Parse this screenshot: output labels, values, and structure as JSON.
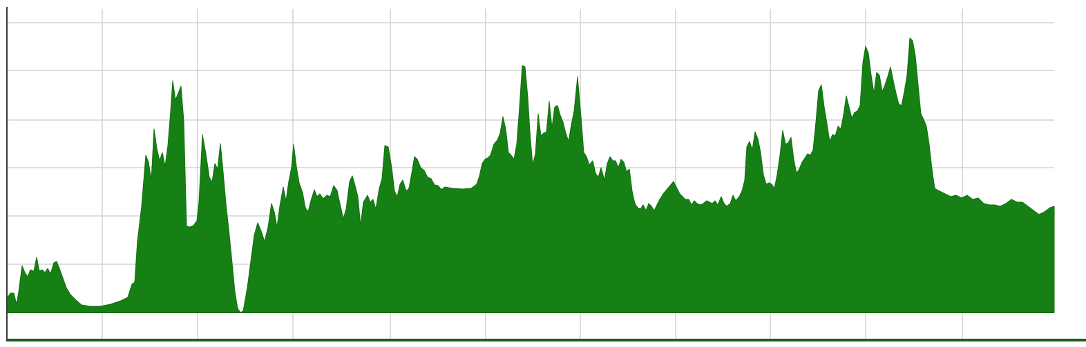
{
  "colors": {
    "area_fill": "#168014",
    "area_stroke": "#127012",
    "grid": "#d4d4d4",
    "axis": "#3a3a3a",
    "bottom_bar": "#1d5c1d"
  },
  "chart_data": {
    "type": "area",
    "grid": true,
    "title": "",
    "xlabel": "",
    "ylabel": "",
    "xlim": [
      0,
      1516
    ],
    "ylim": [
      0,
      420
    ],
    "x_gridlines": [
      138,
      276,
      414,
      555,
      693,
      830,
      968,
      1105,
      1243,
      1383
    ],
    "y_gridlines": [
      70,
      140,
      210,
      279,
      351,
      420
    ],
    "series": [
      {
        "values": [
          [
            0,
            20
          ],
          [
            5,
            28
          ],
          [
            10,
            28
          ],
          [
            14,
            12
          ],
          [
            17,
            30
          ],
          [
            22,
            68
          ],
          [
            26,
            58
          ],
          [
            30,
            52
          ],
          [
            34,
            62
          ],
          [
            39,
            60
          ],
          [
            43,
            80
          ],
          [
            47,
            60
          ],
          [
            51,
            62
          ],
          [
            55,
            58
          ],
          [
            59,
            64
          ],
          [
            63,
            56
          ],
          [
            68,
            72
          ],
          [
            72,
            74
          ],
          [
            76,
            64
          ],
          [
            81,
            50
          ],
          [
            86,
            36
          ],
          [
            92,
            26
          ],
          [
            100,
            18
          ],
          [
            108,
            11
          ],
          [
            120,
            9
          ],
          [
            135,
            9
          ],
          [
            150,
            12
          ],
          [
            165,
            17
          ],
          [
            175,
            22
          ],
          [
            181,
            41
          ],
          [
            185,
            44
          ],
          [
            189,
            104
          ],
          [
            195,
            154
          ],
          [
            201,
            228
          ],
          [
            205,
            218
          ],
          [
            209,
            192
          ],
          [
            213,
            266
          ],
          [
            217,
            238
          ],
          [
            221,
            220
          ],
          [
            225,
            232
          ],
          [
            229,
            212
          ],
          [
            233,
            242
          ],
          [
            237,
            292
          ],
          [
            240,
            336
          ],
          [
            244,
            308
          ],
          [
            248,
            318
          ],
          [
            252,
            328
          ],
          [
            256,
            278
          ],
          [
            260,
            125
          ],
          [
            265,
            124
          ],
          [
            270,
            126
          ],
          [
            275,
            133
          ],
          [
            278,
            160
          ],
          [
            283,
            258
          ],
          [
            288,
            230
          ],
          [
            293,
            196
          ],
          [
            297,
            189
          ],
          [
            301,
            216
          ],
          [
            305,
            208
          ],
          [
            309,
            245
          ],
          [
            312,
            215
          ],
          [
            317,
            158
          ],
          [
            321,
            122
          ],
          [
            326,
            72
          ],
          [
            330,
            30
          ],
          [
            334,
            6
          ],
          [
            338,
            0
          ],
          [
            342,
            2
          ],
          [
            348,
            36
          ],
          [
            353,
            74
          ],
          [
            358,
            112
          ],
          [
            363,
            130
          ],
          [
            368,
            118
          ],
          [
            373,
            103
          ],
          [
            378,
            124
          ],
          [
            383,
            158
          ],
          [
            387,
            146
          ],
          [
            391,
            124
          ],
          [
            395,
            154
          ],
          [
            400,
            182
          ],
          [
            404,
            162
          ],
          [
            408,
            190
          ],
          [
            412,
            210
          ],
          [
            415,
            244
          ],
          [
            419,
            212
          ],
          [
            423,
            188
          ],
          [
            428,
            174
          ],
          [
            432,
            152
          ],
          [
            436,
            146
          ],
          [
            440,
            162
          ],
          [
            445,
            178
          ],
          [
            449,
            168
          ],
          [
            453,
            172
          ],
          [
            458,
            165
          ],
          [
            463,
            170
          ],
          [
            468,
            168
          ],
          [
            473,
            184
          ],
          [
            478,
            177
          ],
          [
            482,
            158
          ],
          [
            487,
            136
          ],
          [
            491,
            150
          ],
          [
            496,
            190
          ],
          [
            500,
            198
          ],
          [
            504,
            184
          ],
          [
            508,
            168
          ],
          [
            512,
            126
          ],
          [
            516,
            160
          ],
          [
            522,
            170
          ],
          [
            526,
            160
          ],
          [
            530,
            164
          ],
          [
            534,
            150
          ],
          [
            539,
            180
          ],
          [
            543,
            194
          ],
          [
            547,
            242
          ],
          [
            552,
            240
          ],
          [
            557,
            210
          ],
          [
            561,
            176
          ],
          [
            565,
            168
          ],
          [
            569,
            186
          ],
          [
            573,
            192
          ],
          [
            578,
            176
          ],
          [
            582,
            180
          ],
          [
            586,
            202
          ],
          [
            590,
            226
          ],
          [
            594,
            222
          ],
          [
            599,
            210
          ],
          [
            604,
            206
          ],
          [
            609,
            196
          ],
          [
            614,
            194
          ],
          [
            619,
            185
          ],
          [
            624,
            184
          ],
          [
            629,
            178
          ],
          [
            634,
            182
          ],
          [
            645,
            180
          ],
          [
            660,
            179
          ],
          [
            672,
            180
          ],
          [
            680,
            186
          ],
          [
            684,
            198
          ],
          [
            688,
            216
          ],
          [
            692,
            222
          ],
          [
            696,
            224
          ],
          [
            700,
            228
          ],
          [
            705,
            244
          ],
          [
            710,
            250
          ],
          [
            714,
            260
          ],
          [
            718,
            284
          ],
          [
            722,
            266
          ],
          [
            726,
            232
          ],
          [
            730,
            228
          ],
          [
            734,
            222
          ],
          [
            738,
            244
          ],
          [
            742,
            298
          ],
          [
            746,
            358
          ],
          [
            750,
            356
          ],
          [
            754,
            312
          ],
          [
            757,
            262
          ],
          [
            761,
            214
          ],
          [
            765,
            230
          ],
          [
            769,
            288
          ],
          [
            773,
            256
          ],
          [
            777,
            260
          ],
          [
            781,
            262
          ],
          [
            785,
            306
          ],
          [
            789,
            268
          ],
          [
            793,
            298
          ],
          [
            797,
            300
          ],
          [
            801,
            286
          ],
          [
            805,
            276
          ],
          [
            809,
            260
          ],
          [
            813,
            248
          ],
          [
            817,
            272
          ],
          [
            821,
            292
          ],
          [
            826,
            342
          ],
          [
            831,
            284
          ],
          [
            835,
            232
          ],
          [
            839,
            226
          ],
          [
            843,
            214
          ],
          [
            848,
            220
          ],
          [
            852,
            202
          ],
          [
            856,
            196
          ],
          [
            860,
            210
          ],
          [
            865,
            192
          ],
          [
            869,
            216
          ],
          [
            873,
            226
          ],
          [
            877,
            220
          ],
          [
            881,
            220
          ],
          [
            885,
            210
          ],
          [
            889,
            222
          ],
          [
            893,
            218
          ],
          [
            897,
            204
          ],
          [
            901,
            208
          ],
          [
            905,
            176
          ],
          [
            909,
            158
          ],
          [
            913,
            152
          ],
          [
            917,
            150
          ],
          [
            921,
            156
          ],
          [
            925,
            148
          ],
          [
            929,
            158
          ],
          [
            933,
            154
          ],
          [
            937,
            148
          ],
          [
            941,
            156
          ],
          [
            945,
            164
          ],
          [
            950,
            172
          ],
          [
            955,
            178
          ],
          [
            960,
            184
          ],
          [
            965,
            190
          ],
          [
            970,
            180
          ],
          [
            974,
            172
          ],
          [
            978,
            168
          ],
          [
            982,
            164
          ],
          [
            987,
            164
          ],
          [
            991,
            156
          ],
          [
            995,
            162
          ],
          [
            999,
            158
          ],
          [
            1004,
            156
          ],
          [
            1008,
            158
          ],
          [
            1013,
            162
          ],
          [
            1017,
            160
          ],
          [
            1021,
            158
          ],
          [
            1025,
            162
          ],
          [
            1029,
            156
          ],
          [
            1034,
            168
          ],
          [
            1038,
            158
          ],
          [
            1042,
            154
          ],
          [
            1047,
            158
          ],
          [
            1051,
            170
          ],
          [
            1055,
            162
          ],
          [
            1060,
            168
          ],
          [
            1064,
            176
          ],
          [
            1068,
            192
          ],
          [
            1071,
            240
          ],
          [
            1075,
            248
          ],
          [
            1079,
            236
          ],
          [
            1083,
            262
          ],
          [
            1087,
            252
          ],
          [
            1091,
            232
          ],
          [
            1095,
            200
          ],
          [
            1099,
            186
          ],
          [
            1103,
            188
          ],
          [
            1107,
            186
          ],
          [
            1111,
            180
          ],
          [
            1115,
            200
          ],
          [
            1119,
            228
          ],
          [
            1123,
            264
          ],
          [
            1127,
            244
          ],
          [
            1131,
            246
          ],
          [
            1135,
            254
          ],
          [
            1139,
            222
          ],
          [
            1143,
            202
          ],
          [
            1147,
            208
          ],
          [
            1151,
            218
          ],
          [
            1155,
            224
          ],
          [
            1159,
            230
          ],
          [
            1163,
            228
          ],
          [
            1167,
            236
          ],
          [
            1171,
            276
          ],
          [
            1175,
            322
          ],
          [
            1179,
            330
          ],
          [
            1183,
            298
          ],
          [
            1187,
            274
          ],
          [
            1191,
            248
          ],
          [
            1195,
            258
          ],
          [
            1199,
            256
          ],
          [
            1203,
            270
          ],
          [
            1207,
            266
          ],
          [
            1211,
            286
          ],
          [
            1215,
            314
          ],
          [
            1219,
            298
          ],
          [
            1223,
            282
          ],
          [
            1227,
            290
          ],
          [
            1231,
            292
          ],
          [
            1235,
            300
          ],
          [
            1239,
            362
          ],
          [
            1243,
            386
          ],
          [
            1247,
            376
          ],
          [
            1251,
            344
          ],
          [
            1255,
            318
          ],
          [
            1259,
            348
          ],
          [
            1263,
            344
          ],
          [
            1267,
            320
          ],
          [
            1271,
            330
          ],
          [
            1275,
            342
          ],
          [
            1279,
            356
          ],
          [
            1283,
            336
          ],
          [
            1287,
            318
          ],
          [
            1291,
            302
          ],
          [
            1295,
            300
          ],
          [
            1299,
            320
          ],
          [
            1303,
            344
          ],
          [
            1307,
            398
          ],
          [
            1311,
            394
          ],
          [
            1315,
            372
          ],
          [
            1319,
            330
          ],
          [
            1323,
            288
          ],
          [
            1327,
            280
          ],
          [
            1331,
            270
          ],
          [
            1335,
            244
          ],
          [
            1339,
            208
          ],
          [
            1343,
            180
          ],
          [
            1350,
            176
          ],
          [
            1358,
            172
          ],
          [
            1366,
            168
          ],
          [
            1374,
            170
          ],
          [
            1382,
            166
          ],
          [
            1390,
            170
          ],
          [
            1398,
            164
          ],
          [
            1406,
            166
          ],
          [
            1414,
            158
          ],
          [
            1422,
            156
          ],
          [
            1430,
            156
          ],
          [
            1438,
            154
          ],
          [
            1446,
            158
          ],
          [
            1454,
            164
          ],
          [
            1462,
            160
          ],
          [
            1470,
            160
          ],
          [
            1478,
            154
          ],
          [
            1486,
            148
          ],
          [
            1494,
            142
          ],
          [
            1502,
            146
          ],
          [
            1510,
            152
          ],
          [
            1516,
            154
          ]
        ]
      }
    ]
  }
}
